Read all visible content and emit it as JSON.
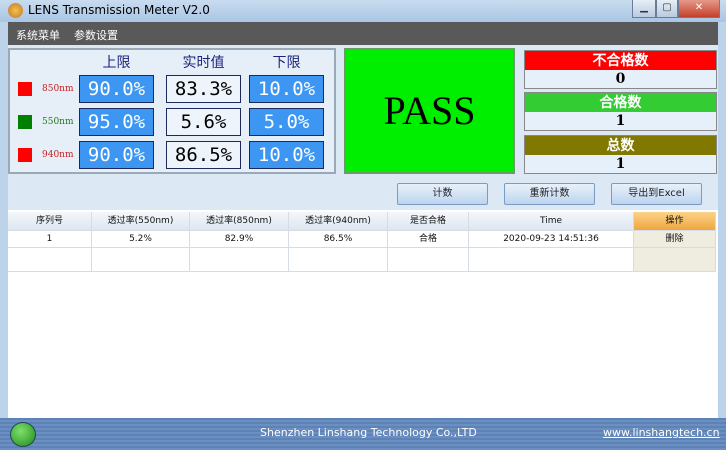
{
  "window": {
    "title": "LENS Transmission Meter V2.0"
  },
  "menu": [
    "系统菜单",
    "参数设置"
  ],
  "limits": {
    "headers": [
      "上限",
      "实时值",
      "下限"
    ],
    "rows": [
      {
        "label": "850nm",
        "color": "#ff0000",
        "upper": "90.0%",
        "value": "83.3%",
        "lower": "10.0%"
      },
      {
        "label": "550nm",
        "color": "#008000",
        "upper": "95.0%",
        "value": "5.6%",
        "lower": "5.0%"
      },
      {
        "label": "940nm",
        "color": "#ff0000",
        "upper": "90.0%",
        "value": "86.5%",
        "lower": "10.0%"
      }
    ]
  },
  "result": {
    "text": "PASS",
    "color": "#00ee00"
  },
  "counters": [
    {
      "label": "不合格数",
      "value": "0",
      "color": "#ff0000"
    },
    {
      "label": "合格数",
      "value": "1",
      "color": "#33cc33"
    },
    {
      "label": "总数",
      "value": "1",
      "color": "#807800"
    }
  ],
  "buttons": {
    "count": "计数",
    "recount": "重新计数",
    "export": "导出到Excel"
  },
  "table": {
    "columns": [
      "序列号",
      "透过率(550nm)",
      "透过率(850nm)",
      "透过率(940nm)",
      "是否合格",
      "Time",
      "操作"
    ],
    "rows": [
      [
        "1",
        "5.2%",
        "82.9%",
        "86.5%",
        "合格",
        "2020-09-23 14:51:36",
        "删除"
      ]
    ]
  },
  "footer": {
    "company": "Shenzhen Linshang Technology Co.,LTD",
    "website": "www.linshangtech.cn"
  }
}
